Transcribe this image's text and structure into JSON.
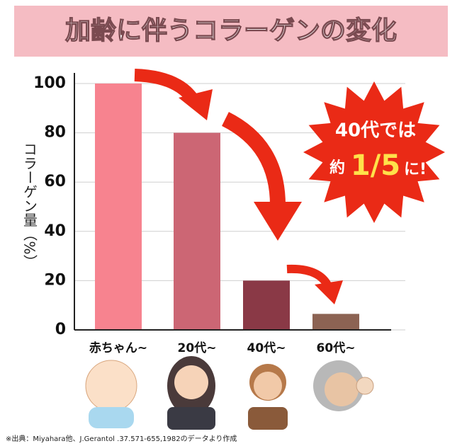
{
  "chart_data": {
    "type": "bar",
    "title": "加齢に伴うコラーゲンの変化",
    "y_label": "コラーゲン量（%）",
    "categories": [
      "赤ちゃん~",
      "20代~",
      "40代~",
      "60代~"
    ],
    "values": [
      100,
      80,
      20,
      6.5
    ],
    "colors": [
      "#f7838f",
      "#cc6674",
      "#8a3946",
      "#8c6353"
    ],
    "ylim": [
      0,
      100
    ],
    "yticks": [
      0,
      20,
      40,
      60,
      80,
      100
    ],
    "grid": true,
    "annotation": [
      "40代では",
      "約",
      "1/5",
      "に!"
    ],
    "footnote": "※出典：Miyahara他、J.Gerantol .37.571-655,1982のデータより作成"
  }
}
